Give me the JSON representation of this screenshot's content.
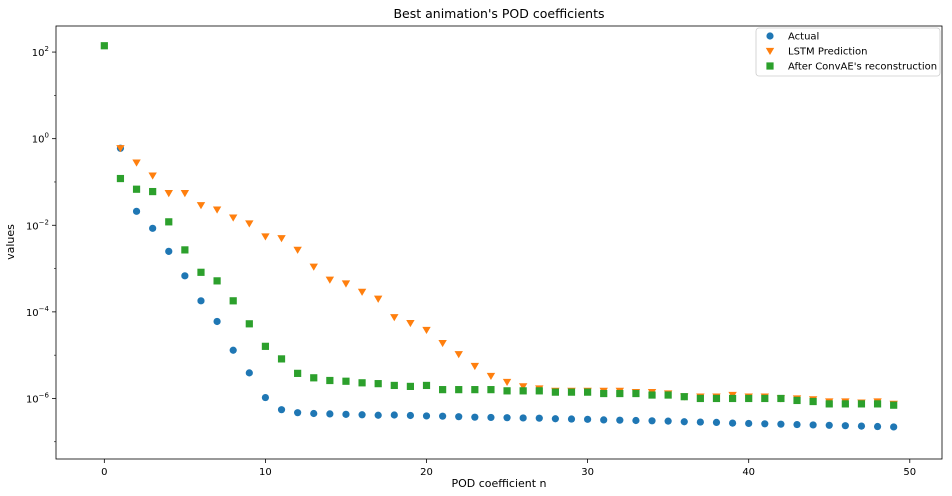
{
  "chart_data": {
    "type": "scatter",
    "title": "Best animation's POD coefficients",
    "xlabel": "POD coefficient n",
    "ylabel": "values",
    "xlim": [
      -3,
      52
    ],
    "ylim": [
      4e-08,
      400
    ],
    "yscale": "log",
    "grid": false,
    "legend_position": "top-right",
    "x_ticks": [
      0,
      10,
      20,
      30,
      40,
      50
    ],
    "y_ticks": [
      {
        "value": 100,
        "base": "10",
        "exp": "2"
      },
      {
        "value": 1,
        "base": "10",
        "exp": "0"
      },
      {
        "value": 0.01,
        "base": "10",
        "exp": "−2"
      },
      {
        "value": 0.0001,
        "base": "10",
        "exp": "−4"
      },
      {
        "value": 1e-06,
        "base": "10",
        "exp": "−6"
      }
    ],
    "series": [
      {
        "name": "Actual",
        "marker": "circle",
        "color": "#1f77b4",
        "x": [
          1,
          2,
          3,
          4,
          5,
          6,
          7,
          8,
          9,
          10,
          11,
          12,
          13,
          14,
          15,
          16,
          17,
          18,
          19,
          20,
          21,
          22,
          23,
          24,
          25,
          26,
          27,
          28,
          29,
          30,
          31,
          32,
          33,
          34,
          35,
          36,
          37,
          38,
          39,
          40,
          41,
          42,
          43,
          44,
          45,
          46,
          47,
          48,
          49
        ],
        "y": [
          0.6,
          0.021,
          0.0085,
          0.0025,
          0.00068,
          0.00018,
          6e-05,
          1.3e-05,
          3.9e-06,
          1.05e-06,
          5.5e-07,
          4.7e-07,
          4.5e-07,
          4.4e-07,
          4.3e-07,
          4.2e-07,
          4.1e-07,
          4.15e-07,
          4.05e-07,
          3.95e-07,
          3.9e-07,
          3.8e-07,
          3.7e-07,
          3.65e-07,
          3.6e-07,
          3.55e-07,
          3.5e-07,
          3.4e-07,
          3.35e-07,
          3.3e-07,
          3.2e-07,
          3.15e-07,
          3.1e-07,
          3.05e-07,
          3e-07,
          2.9e-07,
          2.85e-07,
          2.8e-07,
          2.7e-07,
          2.65e-07,
          2.6e-07,
          2.55e-07,
          2.5e-07,
          2.45e-07,
          2.4e-07,
          2.35e-07,
          2.3e-07,
          2.25e-07,
          2.2e-07
        ]
      },
      {
        "name": "LSTM Prediction",
        "marker": "triangle-down",
        "color": "#ff7f0e",
        "x": [
          1,
          2,
          3,
          4,
          5,
          6,
          7,
          8,
          9,
          10,
          11,
          12,
          13,
          14,
          15,
          16,
          17,
          18,
          19,
          20,
          21,
          22,
          23,
          24,
          25,
          26,
          27,
          28,
          29,
          30,
          31,
          32,
          33,
          34,
          35,
          36,
          37,
          38,
          39,
          40,
          41,
          42,
          43,
          44,
          45,
          46,
          47,
          48,
          49
        ],
        "y": [
          0.6,
          0.28,
          0.14,
          0.055,
          0.055,
          0.029,
          0.023,
          0.015,
          0.011,
          0.0055,
          0.005,
          0.0027,
          0.0011,
          0.00055,
          0.00045,
          0.00029,
          0.0002,
          7.5e-05,
          5.5e-05,
          3.8e-05,
          1.9e-05,
          1.05e-05,
          5.6e-06,
          3.3e-06,
          2.4e-06,
          1.9e-06,
          1.7e-06,
          1.5e-06,
          1.5e-06,
          1.5e-06,
          1.5e-06,
          1.5e-06,
          1.4e-06,
          1.4e-06,
          1.3e-06,
          1.1e-06,
          1.1e-06,
          1.1e-06,
          1.2e-06,
          1.1e-06,
          1.1e-06,
          1e-06,
          1e-06,
          9.5e-07,
          8.5e-07,
          8.5e-07,
          8e-07,
          8.5e-07,
          7.5e-07
        ]
      },
      {
        "name": "After ConvAE's reconstruction",
        "marker": "square",
        "color": "#2ca02c",
        "x": [
          0,
          1,
          2,
          3,
          4,
          5,
          6,
          7,
          8,
          9,
          10,
          11,
          12,
          13,
          14,
          15,
          16,
          17,
          18,
          19,
          20,
          21,
          22,
          23,
          24,
          25,
          26,
          27,
          28,
          29,
          30,
          31,
          32,
          33,
          34,
          35,
          36,
          37,
          38,
          39,
          40,
          41,
          42,
          43,
          44,
          45,
          46,
          47,
          48,
          49
        ],
        "y": [
          140,
          0.12,
          0.068,
          0.06,
          0.012,
          0.0027,
          0.00082,
          0.00052,
          0.00018,
          5.3e-05,
          1.6e-05,
          8.2e-06,
          3.8e-06,
          3e-06,
          2.6e-06,
          2.5e-06,
          2.3e-06,
          2.2e-06,
          2e-06,
          1.9e-06,
          2e-06,
          1.6e-06,
          1.6e-06,
          1.6e-06,
          1.6e-06,
          1.5e-06,
          1.5e-06,
          1.5e-06,
          1.4e-06,
          1.4e-06,
          1.4e-06,
          1.3e-06,
          1.3e-06,
          1.3e-06,
          1.2e-06,
          1.2e-06,
          1.1e-06,
          1e-06,
          1e-06,
          1e-06,
          1e-06,
          1e-06,
          1e-06,
          9e-07,
          8.5e-07,
          7.5e-07,
          7.5e-07,
          7.5e-07,
          7.5e-07,
          7e-07
        ]
      }
    ]
  }
}
